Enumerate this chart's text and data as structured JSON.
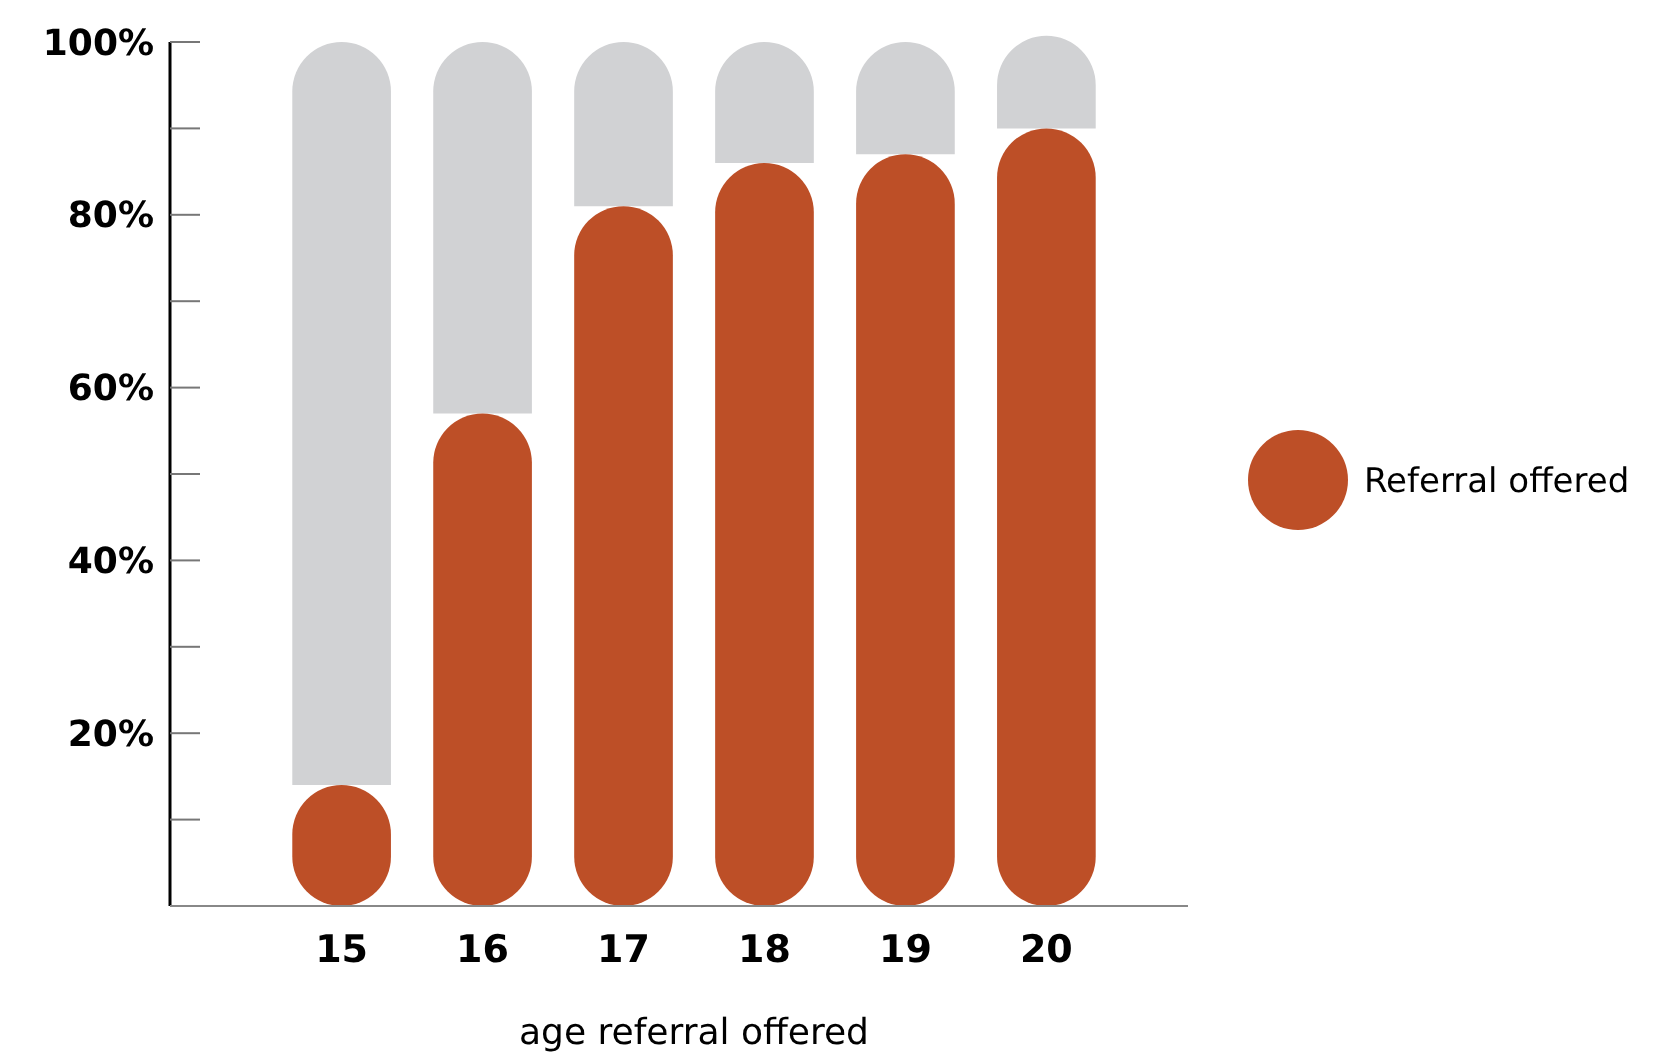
{
  "chart_data": {
    "type": "bar",
    "stacked": true,
    "xlabel": "age referral offered",
    "categories": [
      "15",
      "16",
      "17",
      "18",
      "19",
      "20"
    ],
    "series": [
      {
        "name": "Referral offered",
        "color": "#bd4f27",
        "values": [
          14,
          57,
          81,
          86,
          87,
          90
        ]
      },
      {
        "color": "#d1d2d4",
        "values": [
          86,
          43,
          19,
          14,
          13,
          10
        ]
      }
    ],
    "ylim": [
      0,
      100
    ],
    "yticks": [
      {
        "value": 10,
        "label": null
      },
      {
        "value": 20,
        "label": "20%"
      },
      {
        "value": 30,
        "label": null
      },
      {
        "value": 40,
        "label": "40%"
      },
      {
        "value": 50,
        "label": null
      },
      {
        "value": 60,
        "label": "60%"
      },
      {
        "value": 70,
        "label": null
      },
      {
        "value": 80,
        "label": "80%"
      },
      {
        "value": 90,
        "label": null
      },
      {
        "value": 100,
        "label": "100%"
      }
    ],
    "legend": "right"
  }
}
